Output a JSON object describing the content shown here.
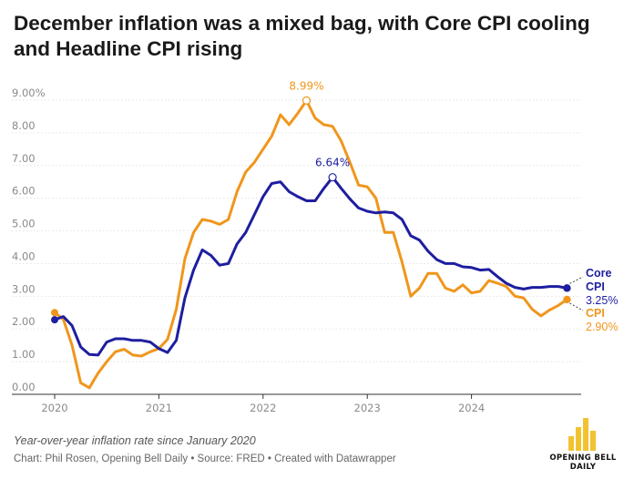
{
  "title": "December inflation was a mixed bag, with Core CPI cooling and Headline CPI rising",
  "subtitle": "Year-over-year inflation rate since January 2020",
  "credits": "Chart: Phil Rosen, Opening Bell Daily • Source: FRED • Created with Datawrapper",
  "logo": {
    "brand_line1": "OPENING BELL",
    "brand_line2": "DAILY",
    "color": "#f2c230",
    "bar_levels": [
      0.45,
      0.72,
      1.0,
      0.6
    ]
  },
  "chart_data": {
    "type": "line",
    "title": "December inflation was a mixed bag, with Core CPI cooling and Headline CPI rising",
    "xlabel": "",
    "ylabel": "",
    "xlim": [
      "2020-01",
      "2024-12"
    ],
    "ylim": [
      0,
      9
    ],
    "xticks": [
      "2020",
      "2021",
      "2022",
      "2023",
      "2024"
    ],
    "yticks": [
      "0.00",
      "1.00",
      "2.00",
      "3.00",
      "4.00",
      "5.00",
      "6.00",
      "7.00",
      "8.00",
      "9.00%"
    ],
    "grid": true,
    "legend": "direct labels at line ends (right)",
    "series": [
      {
        "name": "CPI",
        "color": "#f0961c",
        "end_value_label": "2.90%",
        "values": [
          2.5,
          2.3,
          1.5,
          0.35,
          0.2,
          0.65,
          1.0,
          1.3,
          1.38,
          1.2,
          1.17,
          1.3,
          1.4,
          1.68,
          2.6,
          4.15,
          4.95,
          5.35,
          5.3,
          5.2,
          5.35,
          6.2,
          6.8,
          7.1,
          7.5,
          7.9,
          8.55,
          8.25,
          8.6,
          8.99,
          8.45,
          8.25,
          8.2,
          7.75,
          7.1,
          6.4,
          6.35,
          6.0,
          4.95,
          4.95,
          4.05,
          3.0,
          3.25,
          3.7,
          3.7,
          3.25,
          3.15,
          3.35,
          3.1,
          3.15,
          3.48,
          3.4,
          3.3,
          3.0,
          2.95,
          2.6,
          2.4,
          2.58,
          2.72,
          2.9
        ]
      },
      {
        "name": "Core CPI",
        "color": "#1e1ea0",
        "end_value_label": "3.25%",
        "values": [
          2.28,
          2.38,
          2.1,
          1.45,
          1.22,
          1.2,
          1.6,
          1.7,
          1.7,
          1.65,
          1.65,
          1.6,
          1.4,
          1.28,
          1.65,
          2.95,
          3.8,
          4.42,
          4.25,
          3.95,
          4.0,
          4.6,
          4.95,
          5.5,
          6.05,
          6.45,
          6.5,
          6.2,
          6.05,
          5.92,
          5.92,
          6.3,
          6.64,
          6.3,
          5.98,
          5.7,
          5.6,
          5.55,
          5.58,
          5.55,
          5.35,
          4.85,
          4.72,
          4.38,
          4.12,
          4.0,
          4.0,
          3.9,
          3.88,
          3.8,
          3.82,
          3.6,
          3.4,
          3.27,
          3.22,
          3.27,
          3.27,
          3.3,
          3.3,
          3.25
        ]
      }
    ],
    "annotations": [
      {
        "label": "8.99%",
        "series": "CPI",
        "date": "2022-06",
        "value": 8.99
      },
      {
        "label": "6.64%",
        "series": "Core CPI",
        "date": "2022-09",
        "value": 6.64
      }
    ],
    "end_labels": {
      "core_line1": "Core",
      "core_line2": "CPI",
      "core_value": "3.25%",
      "cpi_line1": "CPI",
      "cpi_value": "2.90%"
    }
  }
}
